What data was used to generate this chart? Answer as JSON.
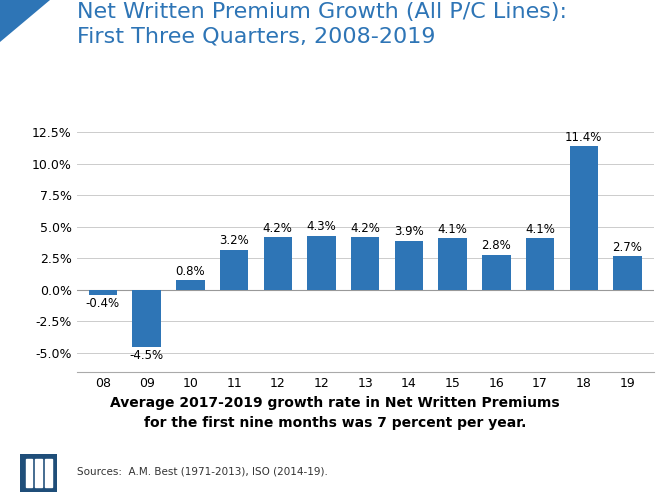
{
  "title": "Net Written Premium Growth (All P/C Lines):\nFirst Three Quarters, 2008-2019",
  "categories": [
    "08",
    "09",
    "10",
    "11",
    "12",
    "12",
    "13",
    "14",
    "15",
    "16",
    "17",
    "18",
    "19"
  ],
  "values": [
    -0.4,
    -4.5,
    0.8,
    3.2,
    4.2,
    4.3,
    4.2,
    3.9,
    4.1,
    2.8,
    4.1,
    11.4,
    2.7
  ],
  "labels": [
    "-0.4%",
    "-4.5%",
    "0.8%",
    "3.2%",
    "4.2%",
    "4.3%",
    "4.2%",
    "3.9%",
    "4.1%",
    "2.8%",
    "4.1%",
    "11.4%",
    "2.7%"
  ],
  "bar_color": "#2E75B6",
  "title_color": "#2E75B6",
  "ylim": [
    -6.5,
    13.5
  ],
  "yticks": [
    -5.0,
    -2.5,
    0.0,
    2.5,
    5.0,
    7.5,
    10.0,
    12.5
  ],
  "ytick_labels": [
    "-5.0%",
    "-2.5%",
    "0.0%",
    "2.5%",
    "5.0%",
    "7.5%",
    "10.0%",
    "12.5%"
  ],
  "orange_box_text": "Average 2017-2019 growth rate in Net Written Premiums\nfor the first nine months was 7 percent per year.",
  "orange_box_color": "#F5A01A",
  "source_text": "Sources:  A.M. Best (1971-2013), ISO (2014-19).",
  "background_color": "#FFFFFF",
  "title_fontsize": 16,
  "label_fontsize": 8.5,
  "tick_fontsize": 9,
  "corner_triangle_color": "#2E75B6"
}
